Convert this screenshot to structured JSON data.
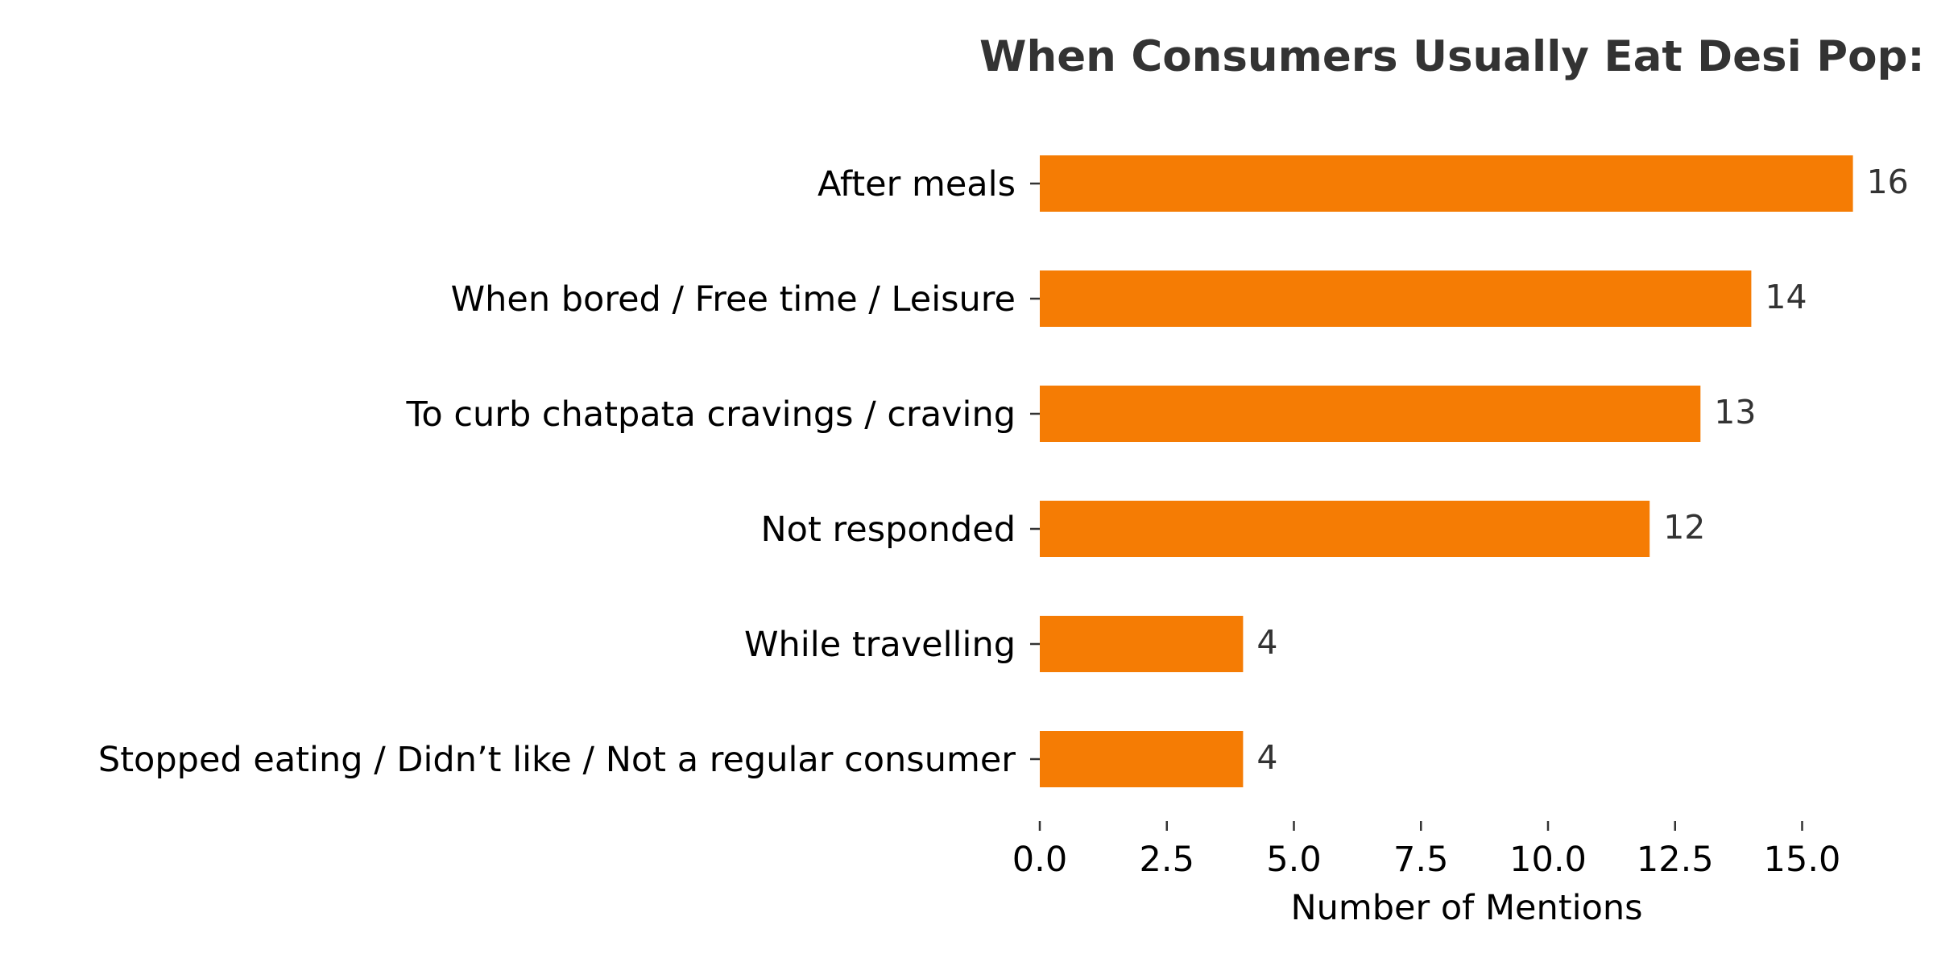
{
  "chart_data": {
    "type": "bar",
    "orientation": "horizontal",
    "title": "When Consumers Usually Eat Desi Pop:",
    "xlabel": "Number of Mentions",
    "ylabel": "",
    "categories": [
      "After meals",
      "When bored / Free time / Leisure",
      "To curb chatpata cravings / craving",
      "Not responded",
      "While travelling",
      "Stopped eating / Didn’t like / Not a regular consumer"
    ],
    "values": [
      16,
      14,
      13,
      12,
      4,
      4
    ],
    "xlim": [
      0,
      16
    ],
    "xticks": [
      "0.0",
      "2.5",
      "5.0",
      "7.5",
      "10.0",
      "12.5",
      "15.0"
    ],
    "grid": false,
    "legend": "none",
    "bar_color": "#f57c04",
    "text_color": "#333333"
  }
}
